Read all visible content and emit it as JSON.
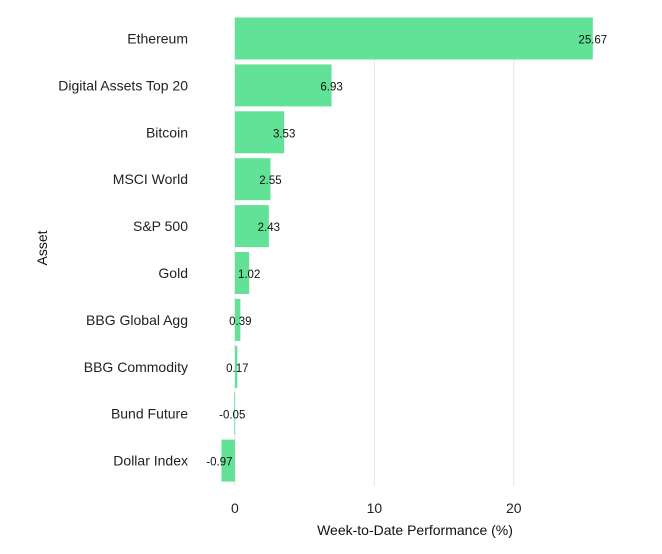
{
  "chart_data": {
    "type": "bar",
    "orientation": "horizontal",
    "categories": [
      "Ethereum",
      "Digital Assets Top 20",
      "Bitcoin",
      "MSCI World",
      "S&P 500",
      "Gold",
      "BBG Global Agg",
      "BBG Commodity",
      "Bund Future",
      "Dollar Index"
    ],
    "values": [
      25.67,
      6.93,
      3.53,
      2.55,
      2.43,
      1.02,
      0.39,
      0.17,
      -0.05,
      -0.97
    ],
    "data_labels": [
      "25.67",
      "6.93",
      "3.53",
      "2.55",
      "2.43",
      "1.02",
      "0.39",
      "0.17",
      "-0.05",
      "-0.97"
    ],
    "xlabel": "Week-to-Date Performance (%)",
    "ylabel": "Asset",
    "xlim": [
      -1.0,
      29.7
    ],
    "xticks": [
      0,
      10,
      20
    ],
    "xtick_labels": [
      "0",
      "10",
      "20"
    ],
    "grid": "vertical",
    "legend": "none",
    "bar_color": "#62e297"
  }
}
